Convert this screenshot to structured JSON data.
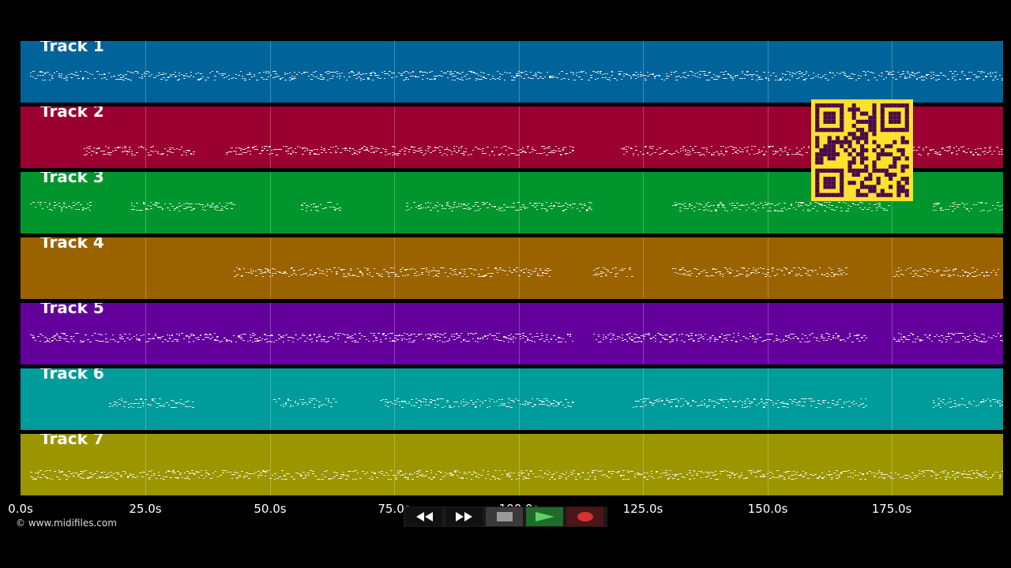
{
  "tracks": [
    {
      "label": "Track 1",
      "color": "#00649a"
    },
    {
      "label": "Track 2",
      "color": "#9b0032"
    },
    {
      "label": "Track 3",
      "color": "#00962d"
    },
    {
      "label": "Track 4",
      "color": "#9b6300"
    },
    {
      "label": "Track 5",
      "color": "#63009b"
    },
    {
      "label": "Track 6",
      "color": "#009b9b"
    },
    {
      "label": "Track 7",
      "color": "#9b9600"
    }
  ],
  "axis": {
    "ticks": [
      "0.0s",
      "25.0s",
      "50.0s",
      "75.0s",
      "100.0s",
      "125.0s",
      "150.0s",
      "175.0s"
    ]
  },
  "copyright": "© www.midifiles.com",
  "transport": {
    "buttons": [
      {
        "name": "rewind-button",
        "icon": "rewind-icon",
        "bg": "#111111"
      },
      {
        "name": "fast-forward-button",
        "icon": "fast-forward-icon",
        "bg": "#111111"
      },
      {
        "name": "stop-button",
        "icon": "stop-icon",
        "bg": "#3a3a3a"
      },
      {
        "name": "play-button",
        "icon": "play-icon",
        "bg": "#1f6b2a"
      },
      {
        "name": "record-button",
        "icon": "record-icon",
        "bg": "#4a1616"
      }
    ]
  },
  "qr_code": {
    "icon": "qr-code-icon",
    "fg": "#4a0a4a",
    "bg": "#fde22d"
  }
}
